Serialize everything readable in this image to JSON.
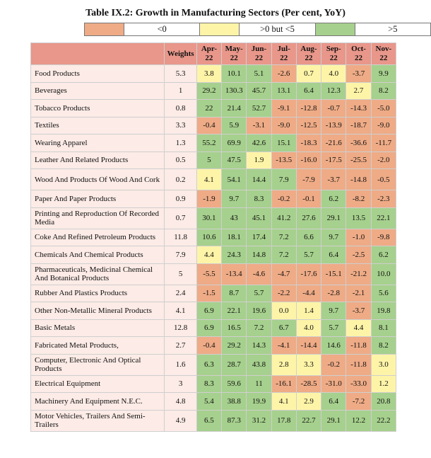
{
  "title": "Table IX.2: Growth in Manufacturing Sectors (Per cent, YoY)",
  "legend": [
    {
      "label": "<0",
      "color": "#eeab86"
    },
    {
      "label": ">0 but <5",
      "color": "#fef4a8"
    },
    {
      "label": ">5",
      "color": "#a6d08d"
    }
  ],
  "colors": {
    "negative": "#eeab86",
    "low": "#fef4a8",
    "high": "#a6d08d",
    "header": "#e8978a",
    "label_bg": "#fcebe6"
  },
  "chart_data": {
    "type": "table",
    "title": "Table IX.2: Growth in Manufacturing Sectors (Per cent, YoY)",
    "row_header": "",
    "weights_header": "Weights",
    "columns": [
      {
        "line1": "Apr-",
        "line2": "22"
      },
      {
        "line1": "May-",
        "line2": "22"
      },
      {
        "line1": "Jun-",
        "line2": "22"
      },
      {
        "line1": "Jul-",
        "line2": "22"
      },
      {
        "line1": "Aug-",
        "line2": "22"
      },
      {
        "line1": "Sep-",
        "line2": "22"
      },
      {
        "line1": "Oct-",
        "line2": "22"
      },
      {
        "line1": "Nov-",
        "line2": "22"
      }
    ],
    "rows": [
      {
        "label": "Food Products",
        "weight": "5.3",
        "values": [
          "3.8",
          "10.1",
          "5.1",
          "-2.6",
          "0.7",
          "4.0",
          "-3.7",
          "9.9"
        ]
      },
      {
        "label": "Beverages",
        "weight": "1",
        "values": [
          "29.2",
          "130.3",
          "45.7",
          "13.1",
          "6.4",
          "12.3",
          "2.7",
          "8.2"
        ]
      },
      {
        "label": "Tobacco Products",
        "weight": "0.8",
        "values": [
          "22",
          "21.4",
          "52.7",
          "-9.1",
          "-12.8",
          "-0.7",
          "-14.3",
          "-5.0"
        ]
      },
      {
        "label": "Textiles",
        "weight": "3.3",
        "values": [
          "-0.4",
          "5.9",
          "-3.1",
          "-9.0",
          "-12.5",
          "-13.9",
          "-18.7",
          "-9.0"
        ]
      },
      {
        "label": "Wearing Apparel",
        "weight": "1.3",
        "values": [
          "55.2",
          "69.9",
          "42.6",
          "15.1",
          "-18.3",
          "-21.6",
          "-36.6",
          "-11.7"
        ]
      },
      {
        "label": "Leather And Related Products",
        "weight": "0.5",
        "values": [
          "5",
          "47.5",
          "1.9",
          "-13.5",
          "-16.0",
          "-17.5",
          "-25.5",
          "-2.0"
        ]
      },
      {
        "label": "Wood And Products Of Wood And Cork",
        "weight": "0.2",
        "values": [
          "4.1",
          "54.1",
          "14.4",
          "7.9",
          "-7.9",
          "-3.7",
          "-14.8",
          "-0.5"
        ]
      },
      {
        "label": "Paper And Paper Products",
        "weight": "0.9",
        "values": [
          "-1.9",
          "9.7",
          "8.3",
          "-0.2",
          "-0.1",
          "6.2",
          "-8.2",
          "-2.3"
        ]
      },
      {
        "label": "Printing and Reproduction Of Recorded Media",
        "weight": "0.7",
        "values": [
          "30.1",
          "43",
          "45.1",
          "41.2",
          "27.6",
          "29.1",
          "13.5",
          "22.1"
        ]
      },
      {
        "label": "Coke And Refined Petroleum Products",
        "weight": "11.8",
        "values": [
          "10.6",
          "18.1",
          "17.4",
          "7.2",
          "6.6",
          "9.7",
          "-1.0",
          "-9.8"
        ]
      },
      {
        "label": "Chemicals And Chemical Products",
        "weight": "7.9",
        "values": [
          "4.4",
          "24.3",
          "14.8",
          "7.2",
          "5.7",
          "6.4",
          "-2.5",
          "6.2"
        ]
      },
      {
        "label": "Pharmaceuticals, Medicinal Chemical And Botanical Products",
        "weight": "5",
        "values": [
          "-5.5",
          "-13.4",
          "-4.6",
          "-4.7",
          "-17.6",
          "-15.1",
          "-21.2",
          "10.0"
        ]
      },
      {
        "label": "Rubber And Plastics Products",
        "weight": "2.4",
        "values": [
          "-1.5",
          "8.7",
          "5.7",
          "-2.2",
          "-4.4",
          "-2.8",
          "-2.1",
          "5.6"
        ]
      },
      {
        "label": "Other Non-Metallic Mineral Products",
        "weight": "4.1",
        "values": [
          "6.9",
          "22.1",
          "19.6",
          "0.0",
          "1.4",
          "9.7",
          "-3.7",
          "19.8"
        ]
      },
      {
        "label": "Basic Metals",
        "weight": "12.8",
        "values": [
          "6.9",
          "16.5",
          "7.2",
          "6.7",
          "4.0",
          "5.7",
          "4.4",
          "8.1"
        ]
      },
      {
        "label": "Fabricated Metal Products,",
        "weight": "2.7",
        "values": [
          "-0.4",
          "29.2",
          "14.3",
          "-4.1",
          "-14.4",
          "14.6",
          "-11.8",
          "8.2"
        ]
      },
      {
        "label": "Computer, Electronic And Optical Products",
        "weight": "1.6",
        "values": [
          "6.3",
          "28.7",
          "43.8",
          "2.8",
          "3.3",
          "-0.2",
          "-11.8",
          "3.0"
        ]
      },
      {
        "label": "Electrical Equipment",
        "weight": "3",
        "values": [
          "8.3",
          "59.6",
          "11",
          "-16.1",
          "-28.5",
          "-31.0",
          "-33.0",
          "1.2"
        ]
      },
      {
        "label": "Machinery And Equipment N.E.C.",
        "weight": "4.8",
        "values": [
          "5.4",
          "38.8",
          "19.9",
          "4.1",
          "2.9",
          "6.4",
          "-7.2",
          "20.8"
        ]
      },
      {
        "label": "Motor Vehicles, Trailers And Semi-Trailers",
        "weight": "4.9",
        "values": [
          "6.5",
          "87.3",
          "31.2",
          "17.8",
          "22.7",
          "29.1",
          "12.2",
          "22.2"
        ]
      }
    ]
  }
}
